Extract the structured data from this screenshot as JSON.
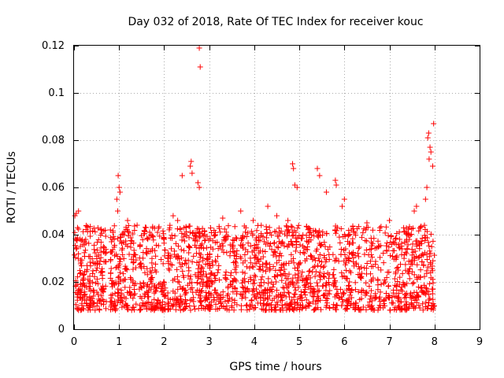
{
  "chart_data": {
    "type": "scatter",
    "title": "Day 032 of 2018, Rate Of TEC Index for receiver kouc",
    "xlabel": "GPS time / hours",
    "ylabel": "ROTI / TECUs",
    "xlim": [
      0,
      9
    ],
    "ylim": [
      0,
      0.12
    ],
    "x_ticks": [
      0,
      1,
      2,
      3,
      4,
      5,
      6,
      7,
      8,
      9
    ],
    "y_ticks": [
      0,
      0.02,
      0.04,
      0.06,
      0.08,
      0.1,
      0.12
    ],
    "x_tick_labels": [
      "0",
      "1",
      "2",
      "3",
      "4",
      "5",
      "6",
      "7",
      "8",
      "9"
    ],
    "y_tick_labels": [
      "0",
      "0.02",
      "0.04",
      "0.06",
      "0.08",
      "0.1",
      "0.12"
    ],
    "grid": true,
    "marker": "plus",
    "color": "#ff0000",
    "series": [
      {
        "name": "ROTI",
        "description": "dense band of ROTI values between ~0.005 and ~0.045 TECU/min across 0-8 h; listed points are notable values read from the plot",
        "points": [
          [
            2.78,
            0.119
          ],
          [
            2.8,
            0.111
          ],
          [
            7.98,
            0.087
          ],
          [
            7.87,
            0.083
          ],
          [
            7.85,
            0.081
          ],
          [
            7.9,
            0.077
          ],
          [
            7.92,
            0.075
          ],
          [
            7.88,
            0.072
          ],
          [
            7.96,
            0.069
          ],
          [
            2.6,
            0.071
          ],
          [
            2.58,
            0.069
          ],
          [
            2.62,
            0.066
          ],
          [
            2.4,
            0.065
          ],
          [
            2.75,
            0.062
          ],
          [
            2.78,
            0.06
          ],
          [
            4.85,
            0.07
          ],
          [
            4.87,
            0.068
          ],
          [
            4.9,
            0.061
          ],
          [
            4.95,
            0.06
          ],
          [
            5.4,
            0.068
          ],
          [
            5.45,
            0.065
          ],
          [
            5.8,
            0.063
          ],
          [
            5.82,
            0.061
          ],
          [
            5.6,
            0.058
          ],
          [
            6.0,
            0.055
          ],
          [
            5.95,
            0.052
          ],
          [
            0.98,
            0.065
          ],
          [
            1.0,
            0.06
          ],
          [
            1.02,
            0.058
          ],
          [
            0.95,
            0.055
          ],
          [
            0.97,
            0.05
          ],
          [
            0.05,
            0.049
          ],
          [
            0.1,
            0.05
          ],
          [
            0.02,
            0.048
          ],
          [
            7.6,
            0.052
          ],
          [
            7.55,
            0.05
          ],
          [
            7.83,
            0.06
          ],
          [
            7.8,
            0.055
          ],
          [
            4.3,
            0.052
          ],
          [
            4.5,
            0.048
          ],
          [
            3.7,
            0.05
          ],
          [
            3.3,
            0.047
          ],
          [
            6.5,
            0.045
          ],
          [
            7.0,
            0.046
          ],
          [
            2.2,
            0.048
          ],
          [
            2.3,
            0.046
          ],
          [
            1.6,
            0.043
          ],
          [
            0.3,
            0.043
          ],
          [
            0.6,
            0.042
          ],
          [
            1.4,
            0.044
          ]
        ]
      }
    ]
  }
}
